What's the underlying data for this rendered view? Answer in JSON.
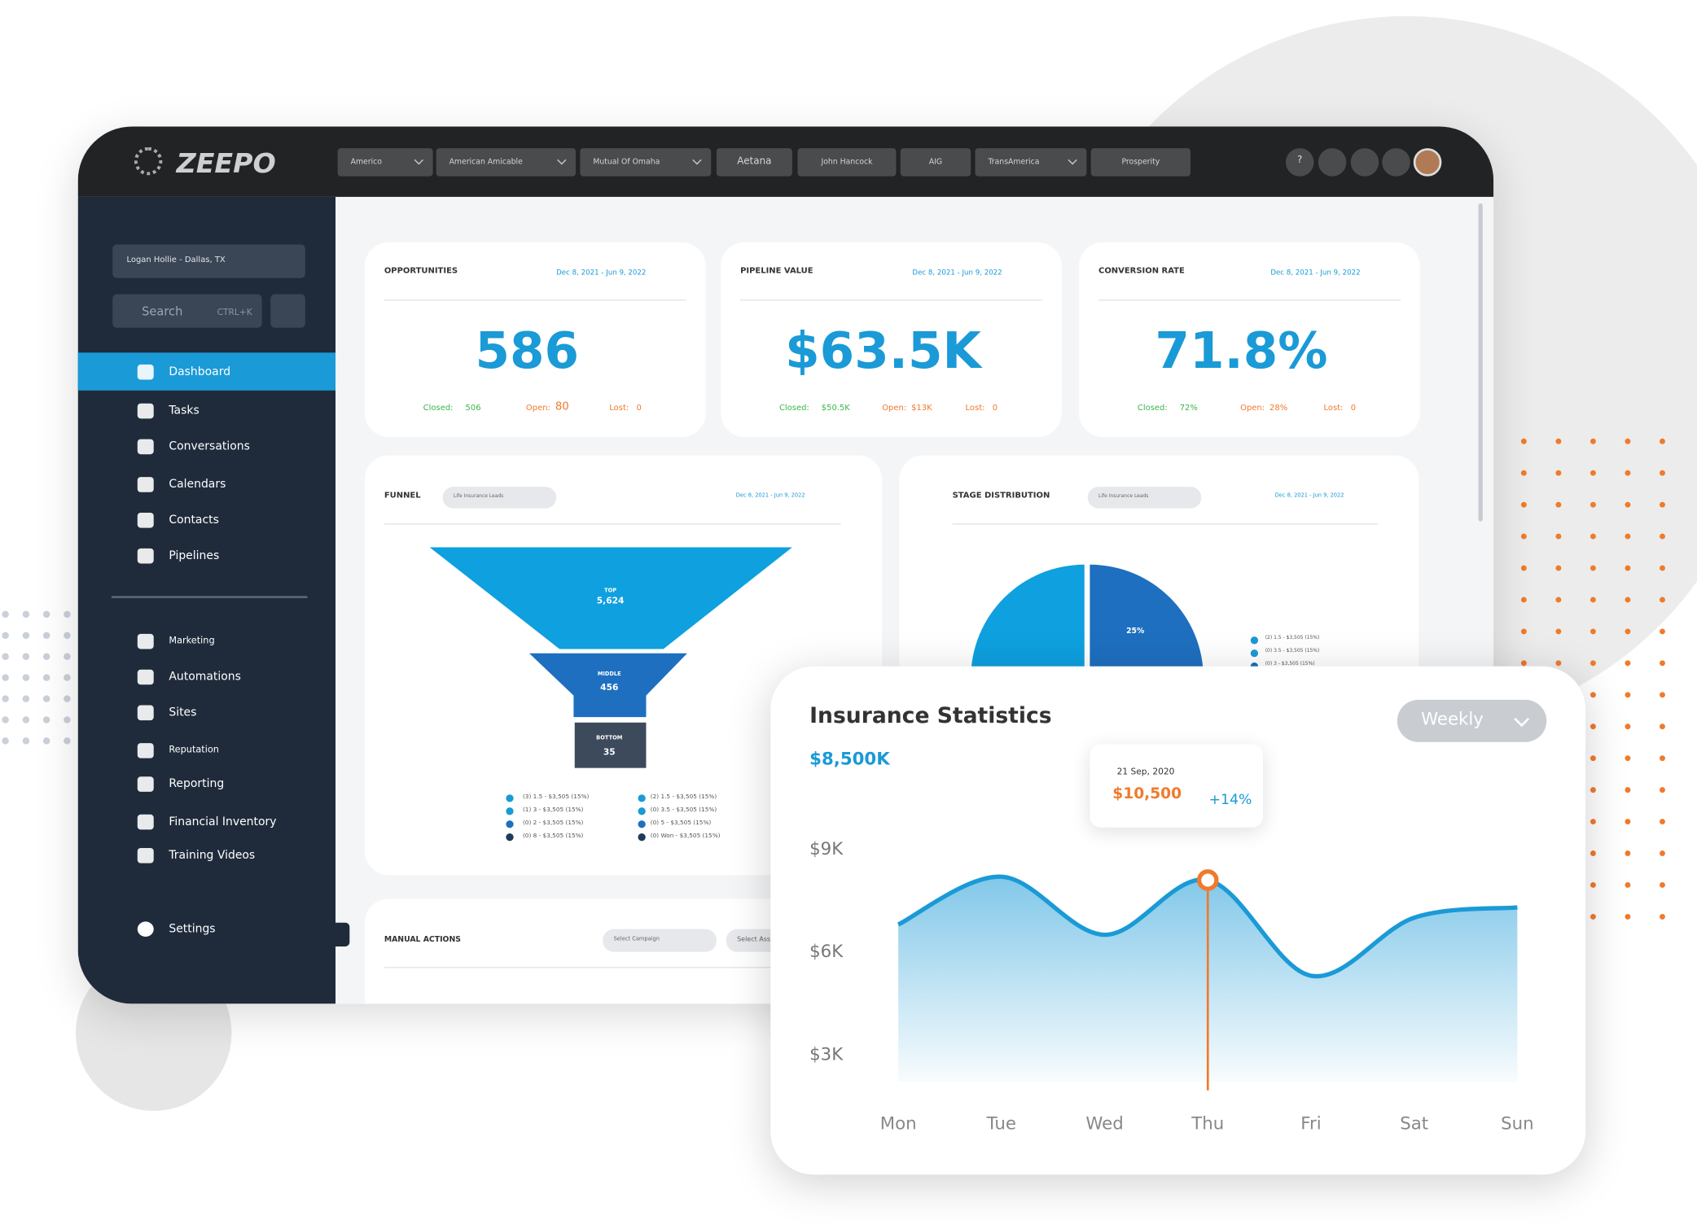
{
  "header": {
    "logo": "ZEEPO",
    "tabs": [
      "Americo",
      "American Amicable",
      "Mutual Of Omaha",
      "Aetana",
      "John Hancock",
      "AIG",
      "TransAmerica",
      "Prosperity"
    ],
    "help": "?"
  },
  "sidebar": {
    "location": "Logan Hollie - Dallas, TX",
    "search": "Search",
    "shortcut": "CTRL+K",
    "menu": [
      "Dashboard",
      "Tasks",
      "Conversations",
      "Calendars",
      "Contacts",
      "Pipelines"
    ],
    "menu2": [
      "Marketing",
      "Automations",
      "Sites",
      "Reputation",
      "Reporting",
      "Financial Inventory",
      "Training Videos"
    ],
    "settings": "Settings"
  },
  "cards": [
    {
      "title": "OPPORTUNITIES",
      "date": "Dec 8, 2021 - Jun 9, 2022",
      "value": "586",
      "closed_label": "Closed:",
      "closed": "506",
      "open_label": "Open:",
      "open": "80",
      "lost_label": "Lost:",
      "lost": "0"
    },
    {
      "title": "PIPELINE VALUE",
      "date": "Dec 8, 2021 - Jun 9, 2022",
      "value": "$63.5K",
      "closed_label": "Closed:",
      "closed": "$50.5K",
      "open_label": "Open:",
      "open": "$13K",
      "lost_label": "Lost:",
      "lost": "0"
    },
    {
      "title": "CONVERSION RATE",
      "date": "Dec 8, 2021 - Jun 9, 2022",
      "value": "71.8%",
      "closed_label": "Closed:",
      "closed": "72%",
      "open_label": "Open:",
      "open": "28%",
      "lost_label": "Lost:",
      "lost": "0"
    }
  ],
  "funnel": {
    "title": "FUNNEL",
    "dropdown": "Life Insurance Leads",
    "date": "Dec 8, 2021 - Jun 9, 2022",
    "stages": [
      {
        "label": "TOP",
        "value": "5,624"
      },
      {
        "label": "MIDDLE",
        "value": "456"
      },
      {
        "label": "BOTTOM",
        "value": "35"
      }
    ],
    "legend": [
      "(3) 1.5 - $3,505 (15%)",
      "(1) 3 - $3,505 (15%)",
      "(0) 2 - $3,505 (15%)",
      "(0) 8 - $3,505 (15%)",
      "(2) 1.5 - $3,505 (15%)",
      "(0) 3.5 - $3,505 (15%)",
      "(0) 5 - $3,505 (15%)",
      "(0) Won - $3,505 (15%)"
    ]
  },
  "stage_distribution": {
    "title": "STAGE DISTRIBUTION",
    "dropdown": "Life Insurance Leads",
    "date": "Dec 8, 2021 - Jun 9, 2022",
    "slice_label": "25%",
    "legend": [
      "(2) 1.5 - $3,505 (15%)",
      "(0) 3.5 - $3,505 (15%)",
      "(0) 3 - $3,505 (15%)"
    ]
  },
  "manual_actions": {
    "title": "MANUAL ACTIONS",
    "select_campaign": "Select Campaign",
    "select_assignee": "Select Assig"
  },
  "chart_data": {
    "type": "area",
    "title": "Insurance Statistics",
    "period": "Weekly",
    "total": "$8,500K",
    "tooltip": {
      "date": "21 Sep, 2020",
      "value": "$10,500",
      "change": "+14%"
    },
    "categories": [
      "Mon",
      "Tue",
      "Wed",
      "Thu",
      "Fri",
      "Sat",
      "Sun"
    ],
    "values": [
      6800,
      8200,
      6500,
      8100,
      5300,
      7000,
      7300
    ],
    "color": "#1a9ad6",
    "ylim": [
      2200,
      9800
    ],
    "yticks": [
      {
        "value": 3000,
        "label": "$3K"
      },
      {
        "value": 6000,
        "label": "$6K"
      },
      {
        "value": 9000,
        "label": "$9K"
      }
    ],
    "grid": false
  }
}
